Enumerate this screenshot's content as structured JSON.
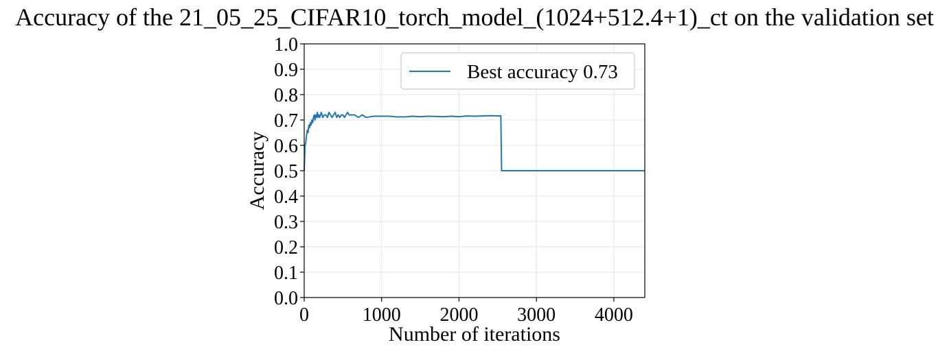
{
  "chart_data": {
    "type": "line",
    "title": "Accuracy of the 21_05_25_CIFAR10_torch_model_(1024+512.4+1)_ct on the validation set",
    "xlabel": "Number of iterations",
    "ylabel": "Accuracy",
    "xlim": [
      0,
      4400
    ],
    "ylim": [
      0.0,
      1.0
    ],
    "xticks": [
      0,
      1000,
      2000,
      3000,
      4000
    ],
    "yticks": [
      0.0,
      0.1,
      0.2,
      0.3,
      0.4,
      0.5,
      0.6,
      0.7,
      0.8,
      0.9,
      1.0
    ],
    "xtick_labels": [
      "0",
      "1000",
      "2000",
      "3000",
      "4000"
    ],
    "ytick_labels": [
      "0.0",
      "0.1",
      "0.2",
      "0.3",
      "0.4",
      "0.5",
      "0.6",
      "0.7",
      "0.8",
      "0.9",
      "1.0"
    ],
    "grid": true,
    "legend_position": "top-right",
    "series": [
      {
        "name": "Best accuracy 0.73",
        "color": "#1f77b4",
        "x": [
          0,
          10,
          20,
          30,
          40,
          50,
          60,
          70,
          80,
          90,
          100,
          110,
          120,
          130,
          140,
          150,
          160,
          170,
          180,
          190,
          200,
          220,
          240,
          260,
          280,
          300,
          320,
          340,
          360,
          380,
          400,
          420,
          440,
          460,
          480,
          500,
          520,
          540,
          560,
          580,
          600,
          650,
          700,
          750,
          800,
          900,
          1000,
          1100,
          1200,
          1300,
          1400,
          1500,
          1600,
          1700,
          1800,
          1900,
          2000,
          2100,
          2200,
          2300,
          2400,
          2500,
          2540,
          2550,
          2600,
          3000,
          3500,
          4000,
          4400
        ],
        "y": [
          0.5,
          0.6,
          0.61,
          0.64,
          0.66,
          0.65,
          0.68,
          0.67,
          0.69,
          0.68,
          0.7,
          0.69,
          0.71,
          0.72,
          0.7,
          0.72,
          0.71,
          0.73,
          0.71,
          0.72,
          0.71,
          0.73,
          0.71,
          0.72,
          0.72,
          0.71,
          0.73,
          0.72,
          0.71,
          0.72,
          0.73,
          0.71,
          0.72,
          0.71,
          0.72,
          0.72,
          0.71,
          0.72,
          0.73,
          0.72,
          0.72,
          0.72,
          0.71,
          0.72,
          0.71,
          0.715,
          0.715,
          0.715,
          0.712,
          0.712,
          0.715,
          0.713,
          0.715,
          0.714,
          0.713,
          0.715,
          0.713,
          0.716,
          0.715,
          0.716,
          0.717,
          0.716,
          0.717,
          0.5,
          0.5,
          0.5,
          0.5,
          0.5,
          0.5
        ]
      }
    ]
  }
}
